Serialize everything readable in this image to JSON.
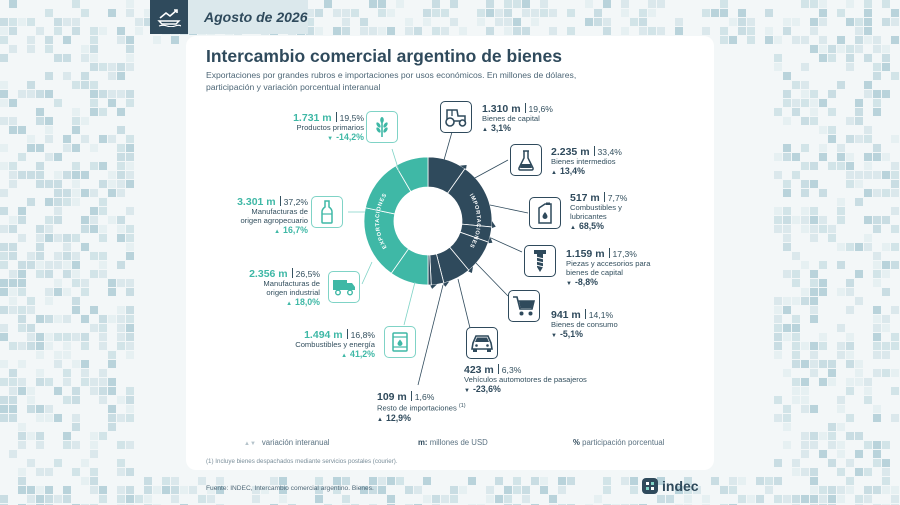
{
  "header": {
    "date": "Agosto de 2026",
    "icon": "ship-chart-icon"
  },
  "title": "Intercambio comercial argentino de bienes",
  "subtitle": "Exportaciones por grandes rubros e importaciones por usos económicos. En millones de dólares, participación y variación porcentual interanual",
  "colors": {
    "exports": "#3fb8a6",
    "exports_light": "#7fd3c6",
    "imports": "#2f4a5c",
    "background": "#f3f7f8",
    "card": "#ffffff"
  },
  "chart_data": [
    {
      "type": "pie",
      "ring_labels": [
        "EXPORTACIONES",
        "IMPORTACIONES"
      ],
      "series": [
        {
          "name": "Exportaciones",
          "categories": [
            "Productos primarios",
            "Manufacturas de origen agropecuario",
            "Manufacturas de origen industrial",
            "Combustibles y energía"
          ],
          "values": [
            1731,
            3301,
            2356,
            1494
          ],
          "shares": [
            "19,5%",
            "37,2%",
            "26,5%",
            "16,8%"
          ],
          "variations": [
            "-14,2%",
            "16,7%",
            "18,0%",
            "41,2%"
          ]
        },
        {
          "name": "Importaciones",
          "categories": [
            "Bienes de capital",
            "Bienes intermedios",
            "Combustibles y lubricantes",
            "Piezas y accesorios para bienes de capital",
            "Bienes de consumo",
            "Vehículos automotores de pasajeros",
            "Resto de importaciones"
          ],
          "values": [
            1310,
            2235,
            517,
            1159,
            941,
            423,
            109
          ],
          "shares": [
            "19,6%",
            "33,4%",
            "7,7%",
            "17,3%",
            "14,1%",
            "6,3%",
            "1,6%"
          ],
          "variations": [
            "3,1%",
            "13,4%",
            "68,5%",
            "-8,8%",
            "-5,1%",
            "-23,6%",
            "12,9%"
          ]
        }
      ]
    }
  ],
  "exports": [
    {
      "key": "prim",
      "value": "1.731 m",
      "share": "19,5%",
      "label": "Productos primarios",
      "variation": "-14,2%",
      "dir": "down",
      "icon": "wheat-icon"
    },
    {
      "key": "moa",
      "value": "3.301 m",
      "share": "37,2%",
      "label": "Manufacturas de\norigen agropecuario",
      "variation": "16,7%",
      "dir": "up",
      "icon": "bottle-icon"
    },
    {
      "key": "moi",
      "value": "2.356 m",
      "share": "26,5%",
      "label": "Manufacturas de\norigen industrial",
      "variation": "18,0%",
      "dir": "up",
      "icon": "truck-icon"
    },
    {
      "key": "ce",
      "value": "1.494 m",
      "share": "16,8%",
      "label": "Combustibles y energía",
      "variation": "41,2%",
      "dir": "up",
      "icon": "fuel-drum-icon"
    }
  ],
  "imports": [
    {
      "key": "bk",
      "value": "1.310 m",
      "share": "19,6%",
      "label": "Bienes de capital",
      "variation": "3,1%",
      "dir": "up",
      "icon": "tractor-icon"
    },
    {
      "key": "bi",
      "value": "2.235 m",
      "share": "33,4%",
      "label": "Bienes intermedios",
      "variation": "13,4%",
      "dir": "up",
      "icon": "flask-icon"
    },
    {
      "key": "cl",
      "value": "517 m",
      "share": "7,7%",
      "label": "Combustibles y\nlubricantes",
      "variation": "68,5%",
      "dir": "up",
      "icon": "oil-can-icon"
    },
    {
      "key": "pa",
      "value": "1.159 m",
      "share": "17,3%",
      "label": "Piezas y accesorios para\nbienes de capital",
      "variation": "-8,8%",
      "dir": "down",
      "icon": "screw-icon"
    },
    {
      "key": "bc",
      "value": "941 m",
      "share": "14,1%",
      "label": "Bienes de consumo",
      "variation": "-5,1%",
      "dir": "down",
      "icon": "cart-icon"
    },
    {
      "key": "va",
      "value": "423 m",
      "share": "6,3%",
      "label": "Vehículos automotores de pasajeros",
      "variation": "-23,6%",
      "dir": "down",
      "icon": "car-icon"
    },
    {
      "key": "ri",
      "value": "109 m",
      "share": "1,6%",
      "label": "Resto de importaciones",
      "label_mark": "(1)",
      "variation": "12,9%",
      "dir": "up"
    }
  ],
  "legend": {
    "variation": "variación interanual",
    "millions_key": "m:",
    "millions": "millones de USD",
    "percent_key": "%",
    "percent": "participación porcentual"
  },
  "footnote": "(1) Incluye bienes despachados mediante servicios postales (courier).",
  "source": "Fuente: INDEC, Intercambio comercial argentino. Bienes.",
  "brand": "indec"
}
